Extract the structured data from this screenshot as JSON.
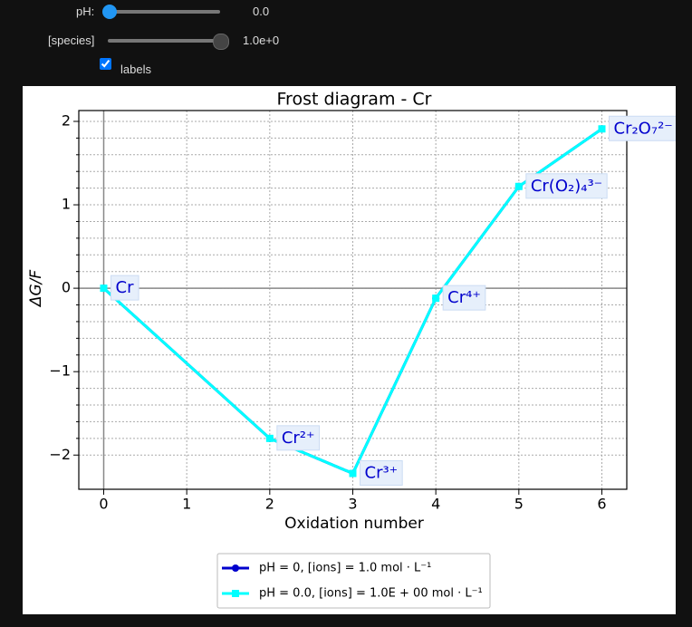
{
  "controls": {
    "ph_label": "pH:",
    "ph_value": "0.0",
    "species_label": "[species]",
    "species_value": "1.0e+0",
    "checkbox_label": "labels"
  },
  "chart_data": {
    "type": "line",
    "title": "Frost diagram - Cr",
    "xlabel": "Oxidation number",
    "ylabel": "ΔG/F",
    "x": [
      0,
      2,
      3,
      4,
      5,
      6
    ],
    "point_labels": [
      "Cr",
      "Cr²⁺",
      "Cr³⁺",
      "Cr⁴⁺",
      "Cr(O₂)₄³⁻",
      "Cr₂O₇²⁻"
    ],
    "series": [
      {
        "name": "pH = 0, [ions] = 1.0 mol · L⁻¹",
        "color": "#0000cd",
        "marker": "circle",
        "values": [
          0,
          -1.8,
          -2.22,
          -0.12,
          1.22,
          1.91
        ]
      },
      {
        "name": "pH = 0.0, [ions] = 1.0E + 00 mol · L⁻¹",
        "color": "#00ffff",
        "marker": "square",
        "values": [
          0,
          -1.8,
          -2.22,
          -0.12,
          1.22,
          1.91
        ]
      }
    ],
    "xlim": [
      -0.3,
      6.3
    ],
    "ylim": [
      -2.41,
      2.13
    ],
    "xticks": [
      0,
      1,
      2,
      3,
      4,
      5,
      6
    ],
    "yticks": [
      {
        "value": -2,
        "label": "−2"
      },
      {
        "value": -1,
        "label": "−1"
      },
      0,
      1,
      2
    ],
    "grid": true,
    "legend": "bottom"
  }
}
